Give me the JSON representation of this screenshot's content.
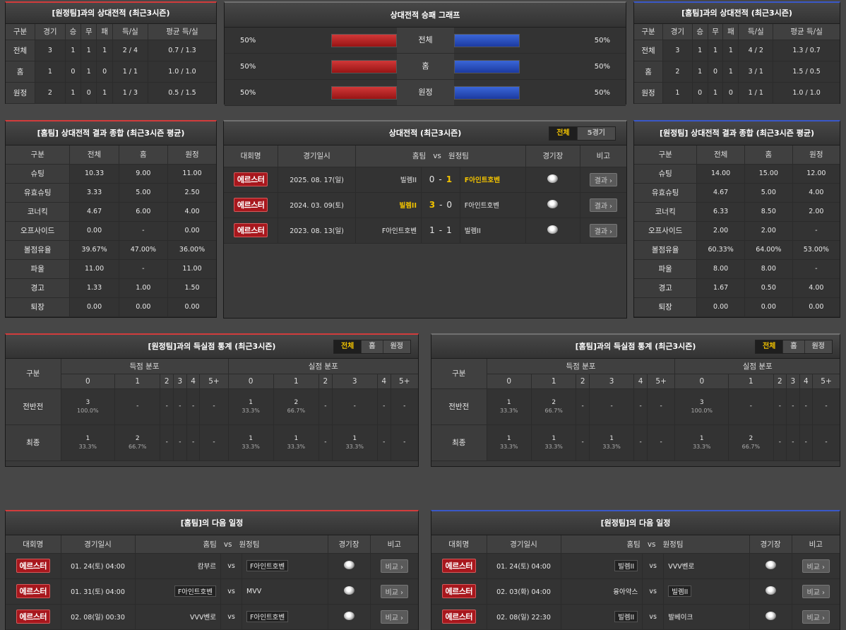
{
  "h2h_away": {
    "title": "[원정팀]과의 상대전적 (최근3시즌)",
    "headers": [
      "구분",
      "경기",
      "승",
      "무",
      "패",
      "득/실",
      "평균 득/실"
    ],
    "rows": [
      [
        "전체",
        "3",
        "1",
        "1",
        "1",
        "2 / 4",
        "0.7 / 1.3"
      ],
      [
        "홈",
        "1",
        "0",
        "1",
        "0",
        "1 / 1",
        "1.0 / 1.0"
      ],
      [
        "원정",
        "2",
        "1",
        "0",
        "1",
        "1 / 3",
        "0.5 / 1.5"
      ]
    ]
  },
  "h2h_home": {
    "title": "[홈팀]과의 상대전적 (최근3시즌)",
    "headers": [
      "구분",
      "경기",
      "승",
      "무",
      "패",
      "득/실",
      "평균 득/실"
    ],
    "rows": [
      [
        "전체",
        "3",
        "1",
        "1",
        "1",
        "4 / 2",
        "1.3 / 0.7"
      ],
      [
        "홈",
        "2",
        "1",
        "0",
        "1",
        "3 / 1",
        "1.5 / 0.5"
      ],
      [
        "원정",
        "1",
        "0",
        "1",
        "0",
        "1 / 1",
        "1.0 / 1.0"
      ]
    ]
  },
  "graph": {
    "title": "상대전적 승패 그래프",
    "rows": [
      {
        "label": "전체",
        "left": "50%",
        "right": "50%",
        "left_value": 0.5,
        "right_value": 0.5
      },
      {
        "label": "홈",
        "left": "50%",
        "right": "50%",
        "left_value": 0.5,
        "right_value": 0.5
      },
      {
        "label": "원정",
        "left": "50%",
        "right": "50%",
        "left_value": 0.5,
        "right_value": 0.5
      }
    ]
  },
  "home_summary": {
    "title": "[홈팀] 상대전적 결과 종합 (최근3시즌 평균)",
    "headers": [
      "구분",
      "전체",
      "홈",
      "원정"
    ],
    "rows": [
      [
        "슈팅",
        "10.33",
        "9.00",
        "11.00"
      ],
      [
        "유효슈팅",
        "3.33",
        "5.00",
        "2.50"
      ],
      [
        "코너킥",
        "4.67",
        "6.00",
        "4.00"
      ],
      [
        "오프사이드",
        "0.00",
        "-",
        "0.00"
      ],
      [
        "볼점유율",
        "39.67%",
        "47.00%",
        "36.00%"
      ],
      [
        "파울",
        "11.00",
        "-",
        "11.00"
      ],
      [
        "경고",
        "1.33",
        "1.00",
        "1.50"
      ],
      [
        "퇴장",
        "0.00",
        "0.00",
        "0.00"
      ]
    ]
  },
  "away_summary": {
    "title": "[원정팀] 상대전적 결과 종합 (최근3시즌 평균)",
    "headers": [
      "구분",
      "전체",
      "홈",
      "원정"
    ],
    "rows": [
      [
        "슈팅",
        "14.00",
        "15.00",
        "12.00"
      ],
      [
        "유효슈팅",
        "4.67",
        "5.00",
        "4.00"
      ],
      [
        "코너킥",
        "6.33",
        "8.50",
        "2.00"
      ],
      [
        "오프사이드",
        "2.00",
        "2.00",
        "-"
      ],
      [
        "볼점유율",
        "60.33%",
        "64.00%",
        "53.00%"
      ],
      [
        "파울",
        "8.00",
        "8.00",
        "-"
      ],
      [
        "경고",
        "1.67",
        "0.50",
        "4.00"
      ],
      [
        "퇴장",
        "0.00",
        "0.00",
        "0.00"
      ]
    ]
  },
  "record": {
    "title": "상대전적 (최근3시즌)",
    "tabs": [
      "전체",
      "5경기"
    ],
    "headers": [
      "대회명",
      "경기일시",
      "홈팀",
      "vs",
      "원정팀",
      "경기장",
      "비고"
    ],
    "matches": [
      {
        "league": "에르스터",
        "date": "2025. 08. 17(일)",
        "home": "빌렘II",
        "hs": "0",
        "sep": "-",
        "as": "1",
        "away": "F아인트호벤",
        "winner": "away",
        "btn": "결과"
      },
      {
        "league": "에르스터",
        "date": "2024. 03. 09(토)",
        "home": "빌렘II",
        "hs": "3",
        "sep": "-",
        "as": "0",
        "away": "F아인트호벤",
        "winner": "home",
        "btn": "결과"
      },
      {
        "league": "에르스터",
        "date": "2023. 08. 13(일)",
        "home": "F아인트호벤",
        "hs": "1",
        "sep": "-",
        "as": "1",
        "away": "빌렘II",
        "winner": "none",
        "btn": "결과"
      }
    ]
  },
  "goals_away": {
    "title": "[원정팀]과의 득실점 통계 (최근3시즌)",
    "tabs": [
      "전체",
      "홈",
      "원정"
    ],
    "h_label": "구분",
    "scored": "득점 분포",
    "conceded": "실점 분포",
    "cols": [
      "0",
      "1",
      "2",
      "3",
      "4",
      "5+"
    ],
    "rows": [
      {
        "label": "전반전",
        "cells": [
          [
            "3",
            "100.0%"
          ],
          [
            "-",
            ""
          ],
          [
            "-",
            ""
          ],
          [
            "-",
            ""
          ],
          [
            "-",
            ""
          ],
          [
            "-",
            ""
          ],
          [
            "1",
            "33.3%"
          ],
          [
            "2",
            "66.7%"
          ],
          [
            "-",
            ""
          ],
          [
            "-",
            ""
          ],
          [
            "-",
            ""
          ],
          [
            "-",
            ""
          ]
        ]
      },
      {
        "label": "최종",
        "cells": [
          [
            "1",
            "33.3%"
          ],
          [
            "2",
            "66.7%"
          ],
          [
            "-",
            ""
          ],
          [
            "-",
            ""
          ],
          [
            "-",
            ""
          ],
          [
            "-",
            ""
          ],
          [
            "1",
            "33.3%"
          ],
          [
            "1",
            "33.3%"
          ],
          [
            "-",
            ""
          ],
          [
            "1",
            "33.3%"
          ],
          [
            "-",
            ""
          ],
          [
            "-",
            ""
          ]
        ]
      }
    ]
  },
  "goals_home": {
    "title": "[홈팀]과의 득실점 통계 (최근3시즌)",
    "tabs": [
      "전체",
      "홈",
      "원정"
    ],
    "h_label": "구분",
    "scored": "득점 분포",
    "conceded": "실점 분포",
    "cols": [
      "0",
      "1",
      "2",
      "3",
      "4",
      "5+"
    ],
    "rows": [
      {
        "label": "전반전",
        "cells": [
          [
            "1",
            "33.3%"
          ],
          [
            "2",
            "66.7%"
          ],
          [
            "-",
            ""
          ],
          [
            "-",
            ""
          ],
          [
            "-",
            ""
          ],
          [
            "-",
            ""
          ],
          [
            "3",
            "100.0%"
          ],
          [
            "-",
            ""
          ],
          [
            "-",
            ""
          ],
          [
            "-",
            ""
          ],
          [
            "-",
            ""
          ],
          [
            "-",
            ""
          ]
        ]
      },
      {
        "label": "최종",
        "cells": [
          [
            "1",
            "33.3%"
          ],
          [
            "1",
            "33.3%"
          ],
          [
            "-",
            ""
          ],
          [
            "1",
            "33.3%"
          ],
          [
            "-",
            ""
          ],
          [
            "-",
            ""
          ],
          [
            "1",
            "33.3%"
          ],
          [
            "2",
            "66.7%"
          ],
          [
            "-",
            ""
          ],
          [
            "-",
            ""
          ],
          [
            "-",
            ""
          ],
          [
            "-",
            ""
          ]
        ]
      }
    ]
  },
  "next_home": {
    "title": "[홈팀]의 다음 일정",
    "headers": [
      "대회명",
      "경기일시",
      "홈팀",
      "vs",
      "원정팀",
      "경기장",
      "비고"
    ],
    "rows": [
      {
        "league": "에르스터",
        "date": "01. 24(토) 04:00",
        "home": "캄부르",
        "vs": "vs",
        "away": "F아인트호벤",
        "boxed": "away",
        "btn": "비교"
      },
      {
        "league": "에르스터",
        "date": "01. 31(토) 04:00",
        "home": "F아인트호벤",
        "vs": "vs",
        "away": "MVV",
        "boxed": "home",
        "btn": "비교"
      },
      {
        "league": "에르스터",
        "date": "02. 08(일) 00:30",
        "home": "VVV벤로",
        "vs": "vs",
        "away": "F아인트호벤",
        "boxed": "away",
        "btn": "비교"
      }
    ]
  },
  "next_away": {
    "title": "[원정팀]의 다음 일정",
    "headers": [
      "대회명",
      "경기일시",
      "홈팀",
      "vs",
      "원정팀",
      "경기장",
      "비고"
    ],
    "rows": [
      {
        "league": "에르스터",
        "date": "01. 24(토) 04:00",
        "home": "빌렘II",
        "vs": "vs",
        "away": "VVV벤로",
        "boxed": "home",
        "btn": "비교"
      },
      {
        "league": "에르스터",
        "date": "02. 03(화) 04:00",
        "home": "융아약스",
        "vs": "vs",
        "away": "빌렘II",
        "boxed": "away",
        "btn": "비교"
      },
      {
        "league": "에르스터",
        "date": "02. 08(일) 22:30",
        "home": "빌렘II",
        "vs": "vs",
        "away": "발베이크",
        "boxed": "home",
        "btn": "비교"
      }
    ]
  }
}
